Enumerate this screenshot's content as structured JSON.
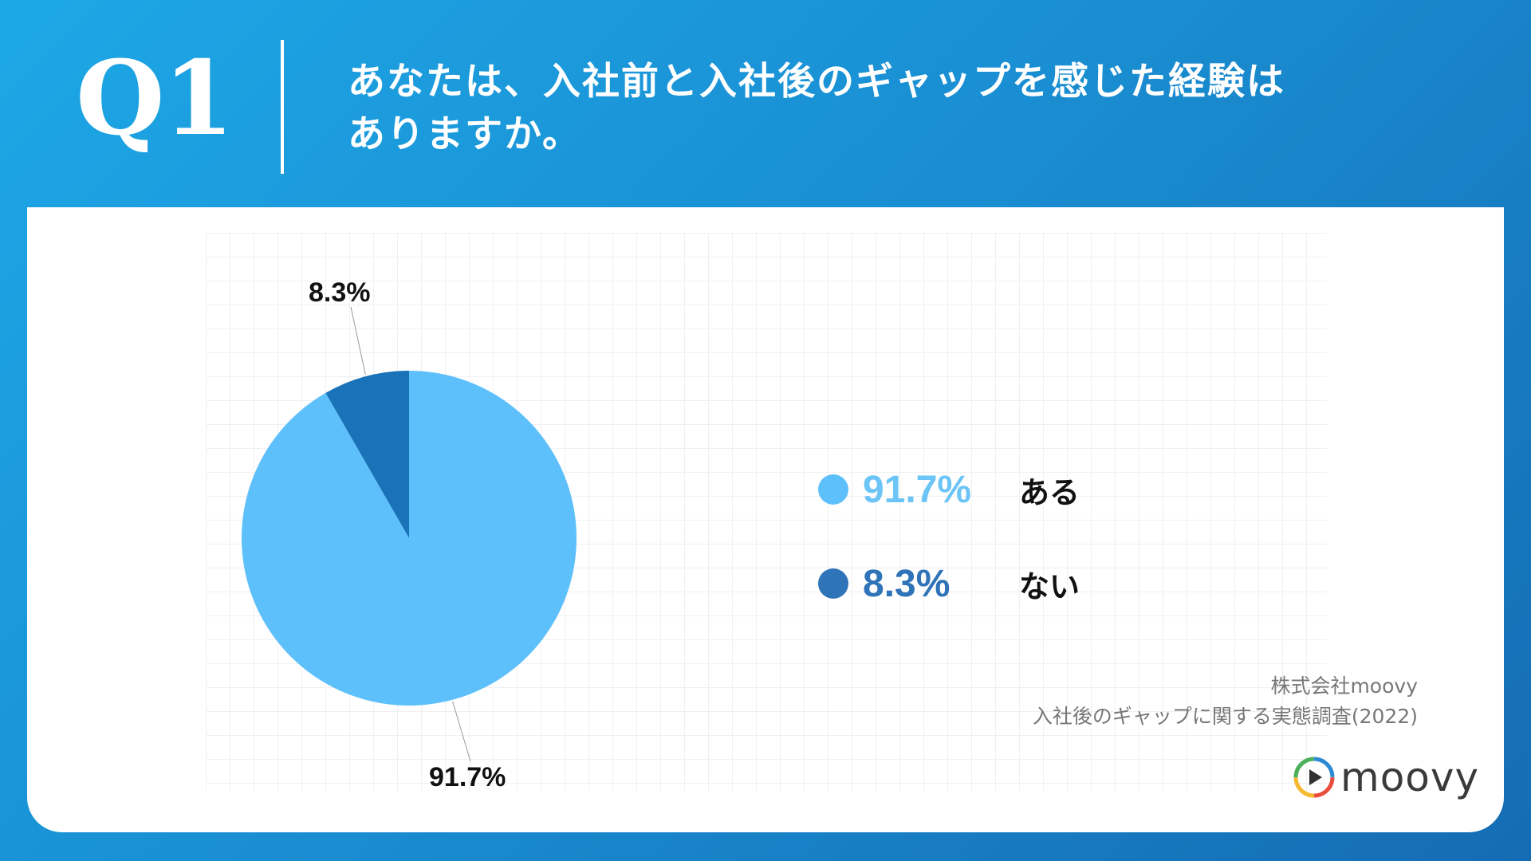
{
  "header": {
    "question_number": "Q1",
    "question_line1": "あなたは、入社前と入社後のギャップを感じた経験は",
    "question_line2": "ありますか。"
  },
  "chart_data": {
    "type": "pie",
    "categories": [
      "ある",
      "ない"
    ],
    "values": [
      91.7,
      8.3
    ],
    "value_labels": [
      "91.7%",
      "8.3%"
    ],
    "colors": [
      "#5ec0fb",
      "#1a72b9"
    ],
    "legend": [
      {
        "value": "91.7%",
        "label": "ある",
        "color": "#5ec0fb"
      },
      {
        "value": "8.3%",
        "label": "ない",
        "color": "#2f73b8"
      }
    ],
    "legend_placement": "right",
    "grid": true
  },
  "source": {
    "line1": "株式会社moovy",
    "line2": "入社後のギャップに関する実態調査(2022)"
  },
  "logo": {
    "text": "moovy",
    "icon": "play-icon"
  }
}
